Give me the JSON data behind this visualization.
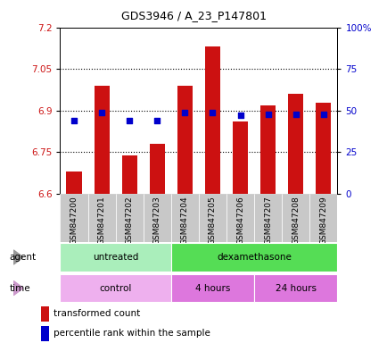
{
  "title": "GDS3946 / A_23_P147801",
  "samples": [
    "GSM847200",
    "GSM847201",
    "GSM847202",
    "GSM847203",
    "GSM847204",
    "GSM847205",
    "GSM847206",
    "GSM847207",
    "GSM847208",
    "GSM847209"
  ],
  "transformed_counts": [
    6.68,
    6.99,
    6.74,
    6.78,
    6.99,
    7.13,
    6.86,
    6.92,
    6.96,
    6.93
  ],
  "percentile_ranks": [
    44,
    49,
    44,
    44,
    49,
    49,
    47,
    48,
    48,
    48
  ],
  "ylim_left": [
    6.6,
    7.2
  ],
  "ylim_right": [
    0,
    100
  ],
  "yticks_left": [
    6.6,
    6.75,
    6.9,
    7.05,
    7.2
  ],
  "yticks_right": [
    0,
    25,
    50,
    75,
    100
  ],
  "ytick_labels_left": [
    "6.6",
    "6.75",
    "6.9",
    "7.05",
    "7.2"
  ],
  "ytick_labels_right": [
    "0",
    "25",
    "50",
    "75",
    "100%"
  ],
  "hline_values": [
    6.75,
    6.9,
    7.05
  ],
  "bar_color": "#cc1111",
  "dot_color": "#0000cc",
  "bar_bottom": 6.6,
  "agent_groups": [
    {
      "label": "untreated",
      "start": 0,
      "end": 4,
      "color": "#aaeebb"
    },
    {
      "label": "dexamethasone",
      "start": 4,
      "end": 10,
      "color": "#55dd55"
    }
  ],
  "time_groups": [
    {
      "label": "control",
      "start": 0,
      "end": 4,
      "color": "#eeb0ee"
    },
    {
      "label": "4 hours",
      "start": 4,
      "end": 7,
      "color": "#dd77dd"
    },
    {
      "label": "24 hours",
      "start": 7,
      "end": 10,
      "color": "#dd77dd"
    }
  ],
  "legend_bar_label": "transformed count",
  "legend_dot_label": "percentile rank within the sample",
  "bar_width": 0.55,
  "tick_label_color_left": "#cc1111",
  "tick_label_color_right": "#0000cc",
  "xlabel_area_bg": "#bbbbbb",
  "arrow_color": "#888888"
}
